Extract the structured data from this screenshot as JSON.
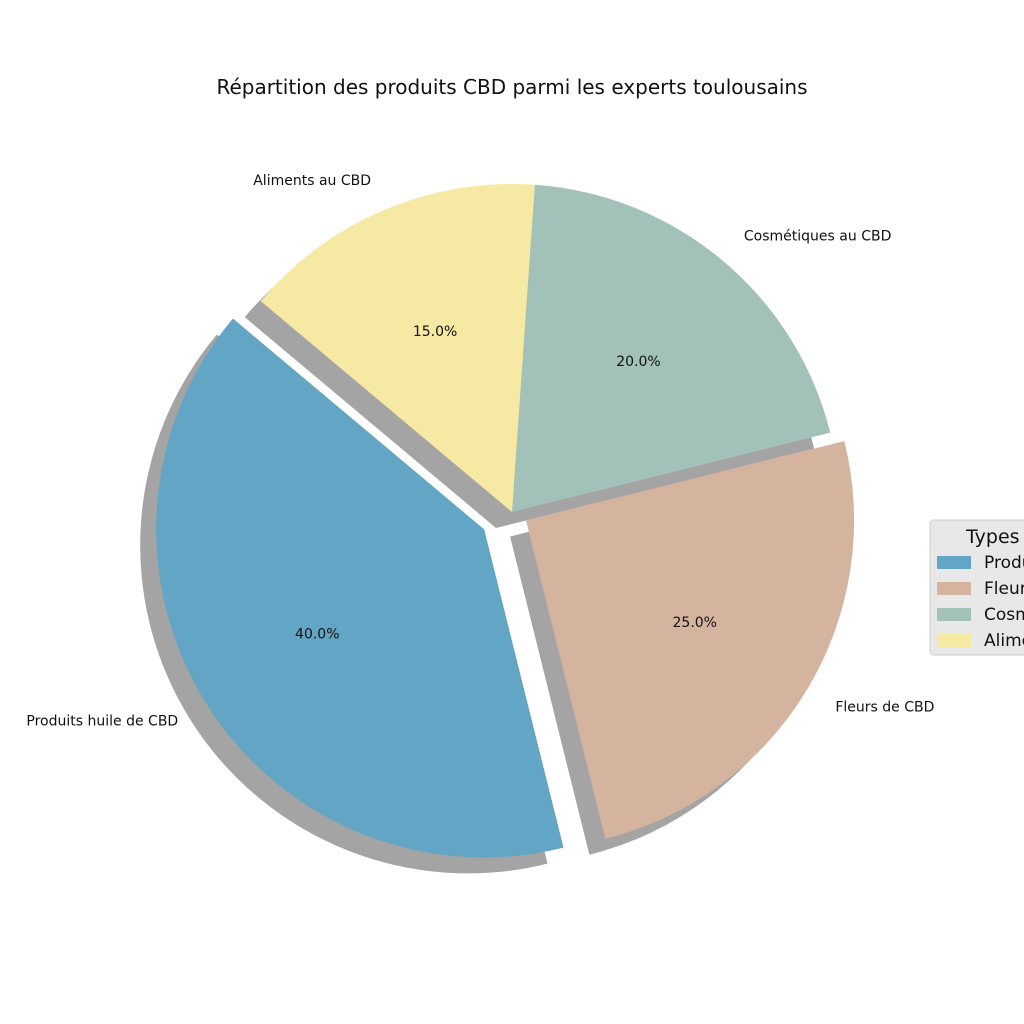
{
  "chart_data": {
    "type": "pie",
    "title": "Répartition des produits CBD parmi les experts toulousains",
    "categories": [
      "Produits huile de CBD",
      "Fleurs de CBD",
      "Cosmétiques au CBD",
      "Aliments au CBD"
    ],
    "values": [
      40.0,
      25.0,
      20.0,
      15.0
    ],
    "value_labels": [
      "40.0%",
      "25.0%",
      "20.0%",
      "15.0%"
    ],
    "colors": [
      "#62a5c4",
      "#d4b39f",
      "#a2c1b8",
      "#f6e9a3"
    ],
    "explode": [
      0.1,
      0.05,
      0,
      0
    ],
    "shadow": true,
    "start_angle_deg": 140,
    "legend": {
      "title": "Types",
      "placement": "center-right",
      "entries": [
        "Produits huile de CBD",
        "Fleurs de CBD",
        "Cosmétiques au CBD",
        "Aliments au CBD"
      ]
    }
  }
}
